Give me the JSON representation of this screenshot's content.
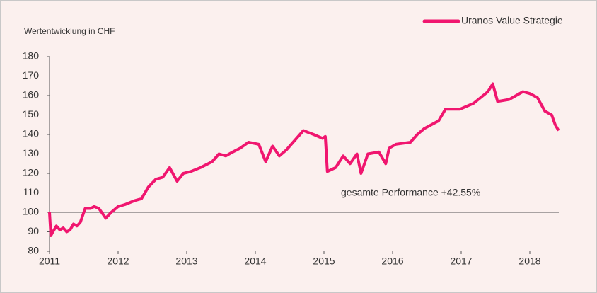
{
  "chart_data": {
    "type": "line",
    "y_axis_label": "Wertentwicklung in CHF",
    "annotation": "gesamte Performance +42.55%",
    "baseline": 100,
    "xlim": [
      2011,
      2018.5
    ],
    "xticks": [
      2011,
      2012,
      2013,
      2014,
      2015,
      2016,
      2017,
      2018
    ],
    "ylim": [
      80,
      180
    ],
    "yticks": [
      80,
      90,
      100,
      110,
      120,
      130,
      140,
      150,
      160,
      170,
      180
    ],
    "legend": "top-right",
    "x": [
      2011.0,
      2011.02,
      2011.05,
      2011.1,
      2011.15,
      2011.2,
      2011.25,
      2011.3,
      2011.35,
      2011.4,
      2011.45,
      2011.52,
      2011.6,
      2011.65,
      2011.72,
      2011.78,
      2011.82,
      2011.9,
      2012.0,
      2012.1,
      2012.24,
      2012.34,
      2012.44,
      2012.55,
      2012.65,
      2012.75,
      2012.86,
      2012.95,
      2013.06,
      2013.2,
      2013.37,
      2013.47,
      2013.57,
      2013.67,
      2013.78,
      2013.9,
      2014.05,
      2014.15,
      2014.25,
      2014.35,
      2014.45,
      2014.6,
      2014.7,
      2014.85,
      2014.98,
      2015.02,
      2015.05,
      2015.17,
      2015.28,
      2015.38,
      2015.48,
      2015.54,
      2015.64,
      2015.8,
      2015.9,
      2015.95,
      2016.05,
      2016.26,
      2016.36,
      2016.46,
      2016.67,
      2016.77,
      2016.98,
      2017.18,
      2017.39,
      2017.46,
      2017.53,
      2017.7,
      2017.9,
      2018.0,
      2018.11,
      2018.22,
      2018.32,
      2018.37,
      2018.42
    ],
    "series": [
      {
        "name": "Uranos Value Strategie",
        "color": "#f0166f",
        "values": [
          100,
          88,
          90,
          93,
          91,
          92,
          90,
          91,
          94,
          93,
          95,
          102,
          102,
          103,
          102,
          99,
          97,
          100,
          103,
          104,
          106,
          107,
          113,
          117,
          118,
          123,
          116,
          120,
          121,
          123,
          126,
          130,
          129,
          131,
          133,
          136,
          135,
          126,
          134,
          129,
          132,
          138,
          142,
          140,
          138,
          139,
          121,
          123,
          129,
          125,
          130,
          120,
          130,
          131,
          125,
          133,
          135,
          136,
          140,
          143,
          147,
          153,
          153,
          156,
          162,
          166,
          157,
          158,
          162,
          161,
          159,
          152,
          150,
          145,
          142
        ]
      }
    ]
  }
}
